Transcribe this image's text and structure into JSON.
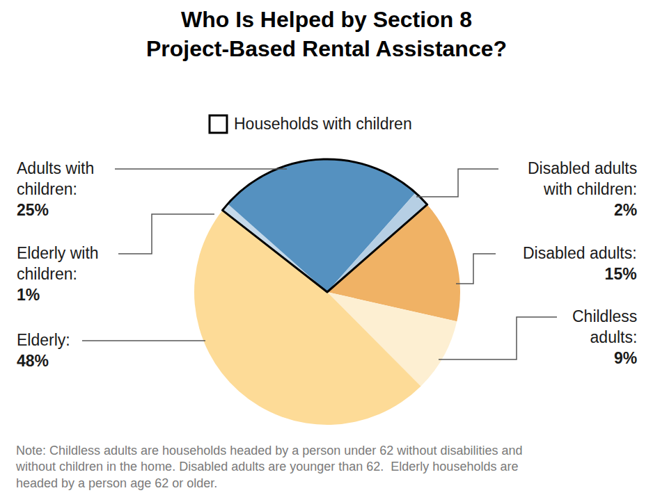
{
  "chart_data": {
    "type": "pie",
    "title": "Who Is Helped by Section 8\nProject-Based Rental Assistance?",
    "categories": [
      "Elderly with\nchildren:",
      "Adults with\nchildren:",
      "Disabled adults\nwith children:",
      "Disabled adults:",
      "Childless\nadults:",
      "Elderly:"
    ],
    "values": [
      1,
      25,
      2,
      15,
      9,
      48
    ],
    "value_labels": [
      "1%",
      "25%",
      "2%",
      "15%",
      "9%",
      "48%"
    ],
    "colors": [
      "#c5d9ea",
      "#5591c0",
      "#b6cfe4",
      "#f0b265",
      "#fdefd2",
      "#fddb97"
    ],
    "data_labels": true,
    "highlight": {
      "label": "Households with children",
      "categories": [
        "Elderly with\nchildren:",
        "Adults with\nchildren:",
        "Disabled adults\nwith children:"
      ]
    },
    "note": "Note: Childless adults are households headed by a person under 62 without disabilities and\nwithout children in the home. Disabled adults are younger than 62.  Elderly households are\nheaded by a person age 62 or older."
  }
}
